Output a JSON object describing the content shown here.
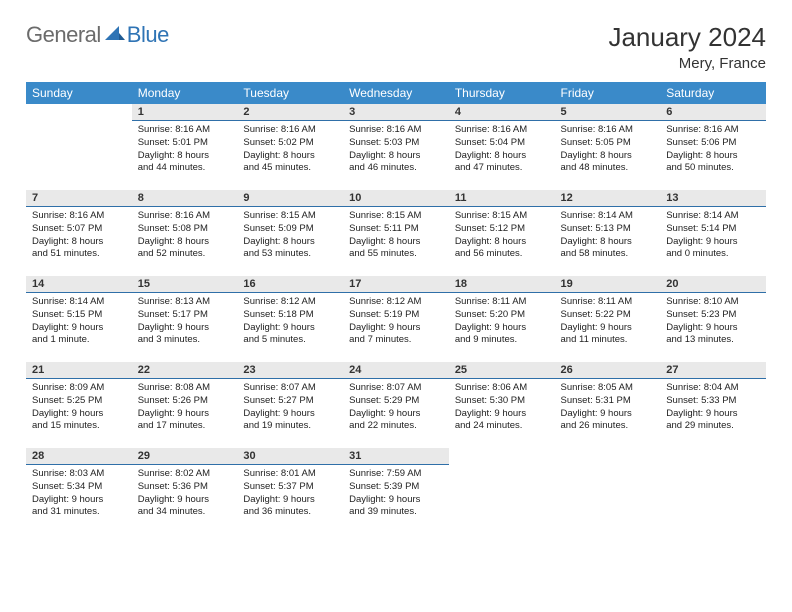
{
  "brand": {
    "part1": "General",
    "part2": "Blue"
  },
  "header": {
    "title": "January 2024",
    "location": "Mery, France"
  },
  "colors": {
    "header_bg": "#3a8ac9",
    "daynum_bg": "#e9e9e9",
    "daynum_border": "#2f6fa8",
    "brand_gray": "#6b6b6b",
    "brand_blue": "#2f74b5"
  },
  "weekdays": [
    "Sunday",
    "Monday",
    "Tuesday",
    "Wednesday",
    "Thursday",
    "Friday",
    "Saturday"
  ],
  "weeks": [
    [
      null,
      {
        "n": "1",
        "sr": "Sunrise: 8:16 AM",
        "ss": "Sunset: 5:01 PM",
        "d1": "Daylight: 8 hours",
        "d2": "and 44 minutes."
      },
      {
        "n": "2",
        "sr": "Sunrise: 8:16 AM",
        "ss": "Sunset: 5:02 PM",
        "d1": "Daylight: 8 hours",
        "d2": "and 45 minutes."
      },
      {
        "n": "3",
        "sr": "Sunrise: 8:16 AM",
        "ss": "Sunset: 5:03 PM",
        "d1": "Daylight: 8 hours",
        "d2": "and 46 minutes."
      },
      {
        "n": "4",
        "sr": "Sunrise: 8:16 AM",
        "ss": "Sunset: 5:04 PM",
        "d1": "Daylight: 8 hours",
        "d2": "and 47 minutes."
      },
      {
        "n": "5",
        "sr": "Sunrise: 8:16 AM",
        "ss": "Sunset: 5:05 PM",
        "d1": "Daylight: 8 hours",
        "d2": "and 48 minutes."
      },
      {
        "n": "6",
        "sr": "Sunrise: 8:16 AM",
        "ss": "Sunset: 5:06 PM",
        "d1": "Daylight: 8 hours",
        "d2": "and 50 minutes."
      }
    ],
    [
      {
        "n": "7",
        "sr": "Sunrise: 8:16 AM",
        "ss": "Sunset: 5:07 PM",
        "d1": "Daylight: 8 hours",
        "d2": "and 51 minutes."
      },
      {
        "n": "8",
        "sr": "Sunrise: 8:16 AM",
        "ss": "Sunset: 5:08 PM",
        "d1": "Daylight: 8 hours",
        "d2": "and 52 minutes."
      },
      {
        "n": "9",
        "sr": "Sunrise: 8:15 AM",
        "ss": "Sunset: 5:09 PM",
        "d1": "Daylight: 8 hours",
        "d2": "and 53 minutes."
      },
      {
        "n": "10",
        "sr": "Sunrise: 8:15 AM",
        "ss": "Sunset: 5:11 PM",
        "d1": "Daylight: 8 hours",
        "d2": "and 55 minutes."
      },
      {
        "n": "11",
        "sr": "Sunrise: 8:15 AM",
        "ss": "Sunset: 5:12 PM",
        "d1": "Daylight: 8 hours",
        "d2": "and 56 minutes."
      },
      {
        "n": "12",
        "sr": "Sunrise: 8:14 AM",
        "ss": "Sunset: 5:13 PM",
        "d1": "Daylight: 8 hours",
        "d2": "and 58 minutes."
      },
      {
        "n": "13",
        "sr": "Sunrise: 8:14 AM",
        "ss": "Sunset: 5:14 PM",
        "d1": "Daylight: 9 hours",
        "d2": "and 0 minutes."
      }
    ],
    [
      {
        "n": "14",
        "sr": "Sunrise: 8:14 AM",
        "ss": "Sunset: 5:15 PM",
        "d1": "Daylight: 9 hours",
        "d2": "and 1 minute."
      },
      {
        "n": "15",
        "sr": "Sunrise: 8:13 AM",
        "ss": "Sunset: 5:17 PM",
        "d1": "Daylight: 9 hours",
        "d2": "and 3 minutes."
      },
      {
        "n": "16",
        "sr": "Sunrise: 8:12 AM",
        "ss": "Sunset: 5:18 PM",
        "d1": "Daylight: 9 hours",
        "d2": "and 5 minutes."
      },
      {
        "n": "17",
        "sr": "Sunrise: 8:12 AM",
        "ss": "Sunset: 5:19 PM",
        "d1": "Daylight: 9 hours",
        "d2": "and 7 minutes."
      },
      {
        "n": "18",
        "sr": "Sunrise: 8:11 AM",
        "ss": "Sunset: 5:20 PM",
        "d1": "Daylight: 9 hours",
        "d2": "and 9 minutes."
      },
      {
        "n": "19",
        "sr": "Sunrise: 8:11 AM",
        "ss": "Sunset: 5:22 PM",
        "d1": "Daylight: 9 hours",
        "d2": "and 11 minutes."
      },
      {
        "n": "20",
        "sr": "Sunrise: 8:10 AM",
        "ss": "Sunset: 5:23 PM",
        "d1": "Daylight: 9 hours",
        "d2": "and 13 minutes."
      }
    ],
    [
      {
        "n": "21",
        "sr": "Sunrise: 8:09 AM",
        "ss": "Sunset: 5:25 PM",
        "d1": "Daylight: 9 hours",
        "d2": "and 15 minutes."
      },
      {
        "n": "22",
        "sr": "Sunrise: 8:08 AM",
        "ss": "Sunset: 5:26 PM",
        "d1": "Daylight: 9 hours",
        "d2": "and 17 minutes."
      },
      {
        "n": "23",
        "sr": "Sunrise: 8:07 AM",
        "ss": "Sunset: 5:27 PM",
        "d1": "Daylight: 9 hours",
        "d2": "and 19 minutes."
      },
      {
        "n": "24",
        "sr": "Sunrise: 8:07 AM",
        "ss": "Sunset: 5:29 PM",
        "d1": "Daylight: 9 hours",
        "d2": "and 22 minutes."
      },
      {
        "n": "25",
        "sr": "Sunrise: 8:06 AM",
        "ss": "Sunset: 5:30 PM",
        "d1": "Daylight: 9 hours",
        "d2": "and 24 minutes."
      },
      {
        "n": "26",
        "sr": "Sunrise: 8:05 AM",
        "ss": "Sunset: 5:31 PM",
        "d1": "Daylight: 9 hours",
        "d2": "and 26 minutes."
      },
      {
        "n": "27",
        "sr": "Sunrise: 8:04 AM",
        "ss": "Sunset: 5:33 PM",
        "d1": "Daylight: 9 hours",
        "d2": "and 29 minutes."
      }
    ],
    [
      {
        "n": "28",
        "sr": "Sunrise: 8:03 AM",
        "ss": "Sunset: 5:34 PM",
        "d1": "Daylight: 9 hours",
        "d2": "and 31 minutes."
      },
      {
        "n": "29",
        "sr": "Sunrise: 8:02 AM",
        "ss": "Sunset: 5:36 PM",
        "d1": "Daylight: 9 hours",
        "d2": "and 34 minutes."
      },
      {
        "n": "30",
        "sr": "Sunrise: 8:01 AM",
        "ss": "Sunset: 5:37 PM",
        "d1": "Daylight: 9 hours",
        "d2": "and 36 minutes."
      },
      {
        "n": "31",
        "sr": "Sunrise: 7:59 AM",
        "ss": "Sunset: 5:39 PM",
        "d1": "Daylight: 9 hours",
        "d2": "and 39 minutes."
      },
      null,
      null,
      null
    ]
  ]
}
